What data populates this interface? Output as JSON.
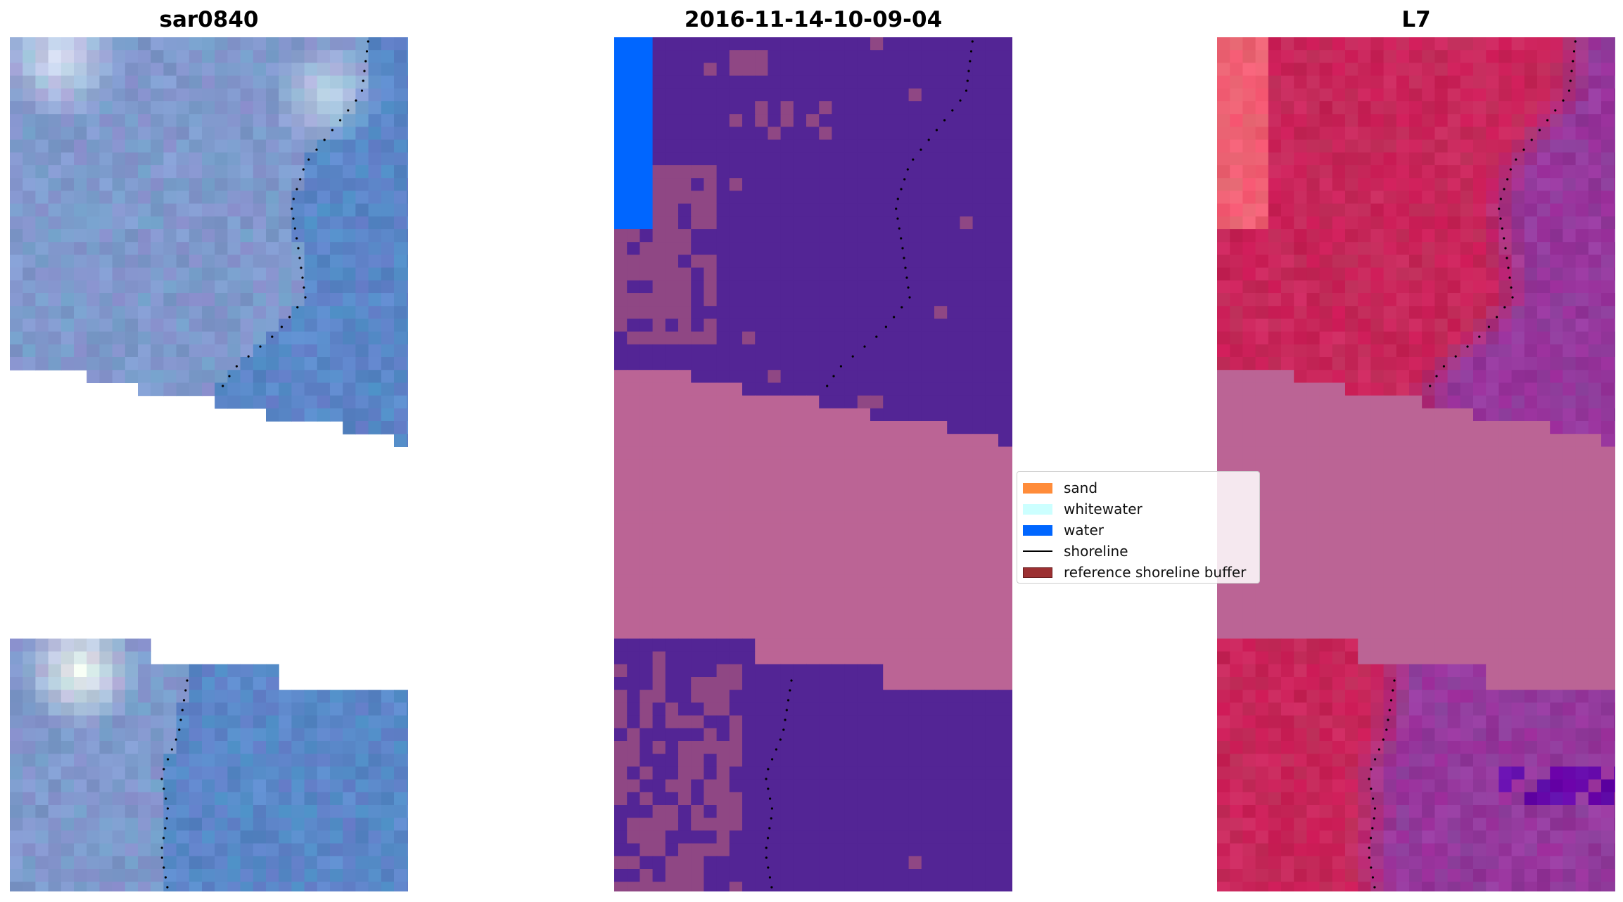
{
  "panels": [
    {
      "title": "sar0840"
    },
    {
      "title": "2016-11-14-10-09-04"
    },
    {
      "title": "L7"
    }
  ],
  "legend": {
    "items": [
      {
        "label": "sand",
        "color": "#ff8c3a",
        "kind": "patch"
      },
      {
        "label": "whitewater",
        "color": "#ccffff",
        "kind": "patch"
      },
      {
        "label": "water",
        "color": "#0066ff",
        "kind": "patch"
      },
      {
        "label": "shoreline",
        "color": "#000000",
        "kind": "line"
      },
      {
        "label": "reference shoreline buffer",
        "color": "#9c3032",
        "kind": "patch"
      }
    ]
  },
  "colors": {
    "rgb_base": "#7f99cc",
    "rgb_water_blue": "#4a7fc6",
    "rgb_bright": "#d8e0f0",
    "class_bg": "#532595",
    "class_land": "#8f4784",
    "class_band": "#bb6495",
    "class_water": "#0066ff",
    "mndwi_land": "#c8265a",
    "mndwi_water": "#94389c",
    "mndwi_band": "#bb6495",
    "shoreline": "#000000"
  }
}
